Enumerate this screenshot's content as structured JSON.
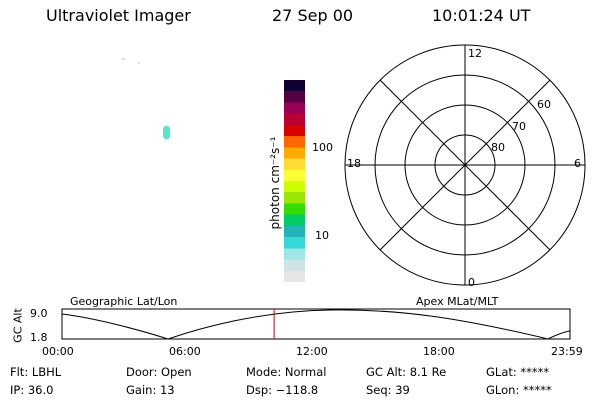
{
  "header": {
    "instrument": "Ultraviolet Imager",
    "date": "27 Sep 00",
    "time": "10:01:24 UT"
  },
  "colorbar": {
    "unit_label": "photon cm⁻²s⁻¹",
    "tick_100": "100",
    "tick_10": "10",
    "scale": "log",
    "colors": [
      "#e6e6e6",
      "#cfe3e6",
      "#9fe6e6",
      "#33d9d9",
      "#22b3b3",
      "#00cc66",
      "#33dd00",
      "#99e600",
      "#ccff00",
      "#ffff33",
      "#ffdd33",
      "#ffaa00",
      "#ff6600",
      "#dd0000",
      "#bb0033",
      "#990055",
      "#550044",
      "#110033"
    ]
  },
  "polar_grid": {
    "mlt_labels": {
      "top": "12",
      "left": "18",
      "right": "6",
      "bottom": "0"
    },
    "lat_labels": [
      "60",
      "70",
      "80"
    ]
  },
  "altitude_plot": {
    "axis_title": "GC Alt",
    "y_ticks": [
      "9.0",
      "1.8"
    ],
    "left_caption": "Geographic Lat/Lon",
    "right_caption": "Apex MLat/MLT",
    "x_ticks": [
      "00:00",
      "06:00",
      "12:00",
      "18:00",
      "23:59"
    ],
    "current_time_fraction": 0.4175,
    "marker_color": "#cc0000"
  },
  "status": {
    "filter": "Flt: LBHL",
    "ip": "IP: 36.0",
    "door": "Door: Open",
    "gain": "Gain: 13",
    "mode": "Mode: Normal",
    "dsp": "Dsp: −118.8",
    "gc_alt": "GC Alt: 8.1 Re",
    "seq": "Seq: 39",
    "glat": "GLat: *****",
    "glon": "GLon: *****"
  }
}
